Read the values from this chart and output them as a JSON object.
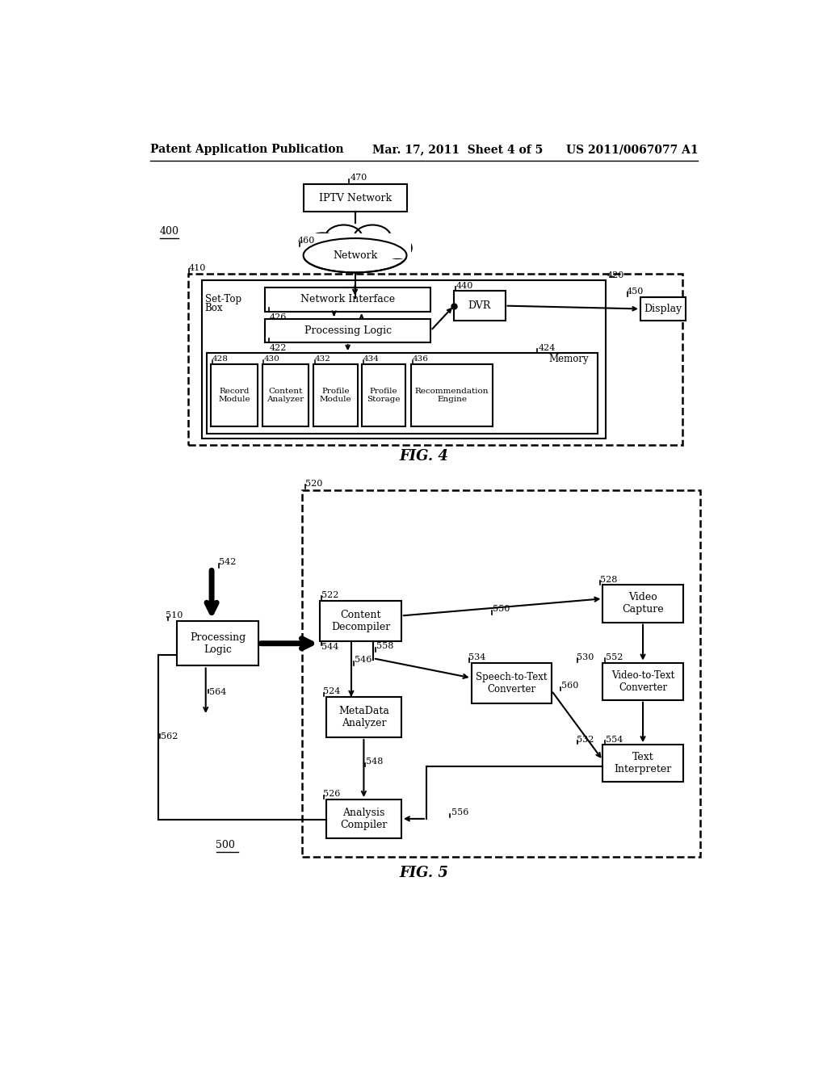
{
  "header_left": "Patent Application Publication",
  "header_mid": "Mar. 17, 2011  Sheet 4 of 5",
  "header_right": "US 2011/0067077 A1",
  "bg_color": "#ffffff",
  "text_color": "#000000"
}
